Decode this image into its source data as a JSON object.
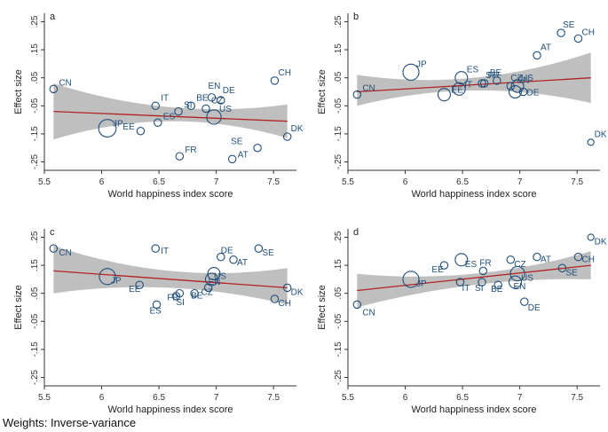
{
  "chart_data": [
    {
      "panel": "a",
      "type": "scatter",
      "xlabel": "World happiness index score",
      "ylabel": "Effect size",
      "xlim": [
        5.5,
        7.7
      ],
      "ylim": [
        -0.28,
        0.28
      ],
      "xticks": [
        "5.5",
        "6",
        "6.5",
        "7",
        "7.5"
      ],
      "yticks": [
        ".25",
        ".15",
        ".05",
        "-.05",
        "-.15",
        "-.25"
      ],
      "fit": {
        "y_at_xmin": -0.07,
        "y_at_xmax": -0.105
      },
      "ci": {
        "lower_at_xmin": -0.17,
        "upper_at_xmin": 0.03,
        "lower_at_xmid": -0.105,
        "upper_at_xmid": -0.055,
        "lower_at_xmax": -0.165,
        "upper_at_xmax": -0.045
      },
      "points": [
        {
          "label": "CN",
          "x": 5.58,
          "y": 0.01,
          "w": 1
        },
        {
          "label": "JP",
          "x": 6.05,
          "y": -0.13,
          "w": 5
        },
        {
          "label": "EE",
          "x": 6.34,
          "y": -0.14,
          "w": 1
        },
        {
          "label": "IT",
          "x": 6.47,
          "y": -0.05,
          "w": 1
        },
        {
          "label": "ES",
          "x": 6.49,
          "y": -0.11,
          "w": 1
        },
        {
          "label": "SI",
          "x": 6.67,
          "y": -0.07,
          "w": 1
        },
        {
          "label": "FR",
          "x": 6.68,
          "y": -0.23,
          "w": 1
        },
        {
          "label": "BE",
          "x": 6.78,
          "y": -0.05,
          "w": 1
        },
        {
          "label": "CZ",
          "x": 6.91,
          "y": -0.06,
          "w": 1
        },
        {
          "label": "EN",
          "x": 6.96,
          "y": -0.02,
          "w": 1
        },
        {
          "label": "US",
          "x": 6.98,
          "y": -0.09,
          "w": 3
        },
        {
          "label": "DE",
          "x": 7.04,
          "y": -0.03,
          "w": 1
        },
        {
          "label": "AT",
          "x": 7.14,
          "y": -0.24,
          "w": 1
        },
        {
          "label": "SE",
          "x": 7.36,
          "y": -0.2,
          "w": 1
        },
        {
          "label": "CH",
          "x": 7.51,
          "y": 0.04,
          "w": 1
        },
        {
          "label": "DK",
          "x": 7.62,
          "y": -0.16,
          "w": 1
        }
      ]
    },
    {
      "panel": "b",
      "type": "scatter",
      "xlabel": "World happiness index score",
      "ylabel": "Effect size",
      "xlim": [
        5.5,
        7.7
      ],
      "ylim": [
        -0.28,
        0.28
      ],
      "xticks": [
        "5.5",
        "6",
        "6.5",
        "7",
        "7.5"
      ],
      "yticks": [
        ".25",
        ".15",
        ".05",
        "-.05",
        "-.15",
        "-.25"
      ],
      "fit": {
        "y_at_xmin": 0.0,
        "y_at_xmax": 0.05
      },
      "ci": {
        "lower_at_xmin": -0.05,
        "upper_at_xmin": 0.06,
        "lower_at_xmid": 0.005,
        "upper_at_xmid": 0.05,
        "lower_at_xmax": -0.04,
        "upper_at_xmax": 0.14
      },
      "points": [
        {
          "label": "CN",
          "x": 5.58,
          "y": -0.01,
          "w": 1
        },
        {
          "label": "JP",
          "x": 6.05,
          "y": 0.07,
          "w": 4
        },
        {
          "label": "EE",
          "x": 6.34,
          "y": -0.01,
          "w": 2
        },
        {
          "label": "IT",
          "x": 6.47,
          "y": 0.01,
          "w": 2
        },
        {
          "label": "ES",
          "x": 6.49,
          "y": 0.05,
          "w": 2
        },
        {
          "label": "SI",
          "x": 6.67,
          "y": 0.03,
          "w": 1
        },
        {
          "label": "FR",
          "x": 6.69,
          "y": 0.03,
          "w": 1
        },
        {
          "label": "BE",
          "x": 6.8,
          "y": 0.04,
          "w": 1
        },
        {
          "label": "CZ",
          "x": 6.92,
          "y": 0.02,
          "w": 1
        },
        {
          "label": "EN",
          "x": 6.96,
          "y": 0.0,
          "w": 2
        },
        {
          "label": "US",
          "x": 6.98,
          "y": 0.02,
          "w": 2
        },
        {
          "label": "DE",
          "x": 7.03,
          "y": 0.0,
          "w": 1
        },
        {
          "label": "AT",
          "x": 7.15,
          "y": 0.13,
          "w": 1
        },
        {
          "label": "SE",
          "x": 7.36,
          "y": 0.21,
          "w": 1
        },
        {
          "label": "CH",
          "x": 7.51,
          "y": 0.19,
          "w": 1
        },
        {
          "label": "DK",
          "x": 7.62,
          "y": -0.18,
          "w": 0.5
        }
      ]
    },
    {
      "panel": "c",
      "type": "scatter",
      "xlabel": "World happiness index score",
      "ylabel": "Effect size",
      "xlim": [
        5.5,
        7.7
      ],
      "ylim": [
        -0.28,
        0.28
      ],
      "xticks": [
        "5.5",
        "6",
        "6.5",
        "7",
        "7.5"
      ],
      "yticks": [
        ".25",
        ".15",
        ".05",
        "-.05",
        "-.15",
        "-.25"
      ],
      "fit": {
        "y_at_xmin": 0.13,
        "y_at_xmax": 0.07
      },
      "ci": {
        "lower_at_xmin": 0.05,
        "upper_at_xmin": 0.22,
        "lower_at_xmid": 0.07,
        "upper_at_xmid": 0.13,
        "lower_at_xmax": 0.01,
        "upper_at_xmax": 0.14
      },
      "points": [
        {
          "label": "CN",
          "x": 5.58,
          "y": 0.21,
          "w": 1
        },
        {
          "label": "JP",
          "x": 6.05,
          "y": 0.11,
          "w": 4
        },
        {
          "label": "EE",
          "x": 6.33,
          "y": 0.08,
          "w": 1
        },
        {
          "label": "IT",
          "x": 6.47,
          "y": 0.21,
          "w": 1
        },
        {
          "label": "ES",
          "x": 6.48,
          "y": 0.01,
          "w": 1
        },
        {
          "label": "SI",
          "x": 6.65,
          "y": 0.04,
          "w": 1
        },
        {
          "label": "FR",
          "x": 6.68,
          "y": 0.05,
          "w": 1
        },
        {
          "label": "BE",
          "x": 6.81,
          "y": 0.05,
          "w": 1
        },
        {
          "label": "CZ",
          "x": 6.93,
          "y": 0.07,
          "w": 1
        },
        {
          "label": "EN",
          "x": 6.96,
          "y": 0.1,
          "w": 2
        },
        {
          "label": "US",
          "x": 6.98,
          "y": 0.12,
          "w": 2
        },
        {
          "label": "DE",
          "x": 7.04,
          "y": 0.18,
          "w": 1
        },
        {
          "label": "AT",
          "x": 7.15,
          "y": 0.17,
          "w": 1
        },
        {
          "label": "SE",
          "x": 7.37,
          "y": 0.21,
          "w": 1
        },
        {
          "label": "CH",
          "x": 7.51,
          "y": 0.03,
          "w": 1
        },
        {
          "label": "DK",
          "x": 7.62,
          "y": 0.07,
          "w": 1
        }
      ]
    },
    {
      "panel": "d",
      "type": "scatter",
      "xlabel": "World happiness index score",
      "ylabel": "Effect size",
      "xlim": [
        5.5,
        7.7
      ],
      "ylim": [
        -0.28,
        0.28
      ],
      "xticks": [
        "5.5",
        "6",
        "6.5",
        "7",
        "7.5"
      ],
      "yticks": [
        ".25",
        ".15",
        ".05",
        "-.05",
        "-.15",
        "-.25"
      ],
      "fit": {
        "y_at_xmin": 0.06,
        "y_at_xmax": 0.15
      },
      "ci": {
        "lower_at_xmin": 0.0,
        "upper_at_xmin": 0.12,
        "lower_at_xmid": 0.08,
        "upper_at_xmid": 0.12,
        "lower_at_xmax": 0.1,
        "upper_at_xmax": 0.2
      },
      "points": [
        {
          "label": "CN",
          "x": 5.58,
          "y": 0.01,
          "w": 1
        },
        {
          "label": "JP",
          "x": 6.05,
          "y": 0.1,
          "w": 4
        },
        {
          "label": "EE",
          "x": 6.34,
          "y": 0.15,
          "w": 1
        },
        {
          "label": "IT",
          "x": 6.48,
          "y": 0.09,
          "w": 1
        },
        {
          "label": "ES",
          "x": 6.49,
          "y": 0.17,
          "w": 2
        },
        {
          "label": "SI",
          "x": 6.67,
          "y": 0.09,
          "w": 1
        },
        {
          "label": "FR",
          "x": 6.68,
          "y": 0.13,
          "w": 1
        },
        {
          "label": "BE",
          "x": 6.81,
          "y": 0.08,
          "w": 1
        },
        {
          "label": "CZ",
          "x": 6.92,
          "y": 0.17,
          "w": 1
        },
        {
          "label": "EN",
          "x": 6.96,
          "y": 0.09,
          "w": 2
        },
        {
          "label": "US",
          "x": 6.98,
          "y": 0.12,
          "w": 3
        },
        {
          "label": "DE",
          "x": 7.04,
          "y": 0.02,
          "w": 1
        },
        {
          "label": "AT",
          "x": 7.15,
          "y": 0.18,
          "w": 1
        },
        {
          "label": "SE",
          "x": 7.37,
          "y": 0.14,
          "w": 1
        },
        {
          "label": "CH",
          "x": 7.51,
          "y": 0.18,
          "w": 1
        },
        {
          "label": "DK",
          "x": 7.62,
          "y": 0.25,
          "w": 0.5
        }
      ]
    }
  ],
  "caption": "Weights: Inverse-variance",
  "colors": {
    "marker": "#1f4e79",
    "fit": "#b22222",
    "ci": "#b8b8b8",
    "axis": "#333333"
  }
}
